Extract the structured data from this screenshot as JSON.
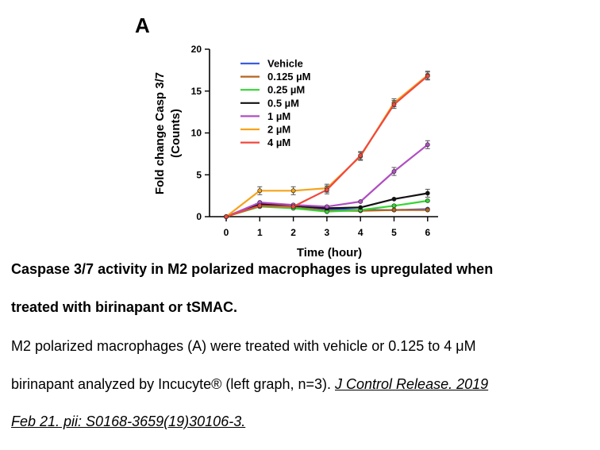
{
  "figure": {
    "panel_label": "A"
  },
  "chart_data": {
    "type": "line",
    "ylabel_line1": "Fold change Casp 3/7",
    "ylabel_line2": "(Counts)",
    "xlabel": "Time (hour)",
    "x": [
      0,
      1,
      2,
      3,
      4,
      5,
      6
    ],
    "xlim": [
      0,
      6
    ],
    "ylim": [
      0,
      20
    ],
    "x_ticks": [
      "0",
      "1",
      "2",
      "3",
      "4",
      "5",
      "6"
    ],
    "y_ticks": [
      "0",
      "5",
      "10",
      "15",
      "20"
    ],
    "legend_position": "top-left",
    "series": [
      {
        "name": "Vehicle",
        "color": "#3a5de0",
        "values": [
          0,
          1.6,
          1.3,
          0.9,
          0.8,
          0.8,
          0.9
        ]
      },
      {
        "name": "0.125 µM",
        "color": "#b5651d",
        "values": [
          0,
          1.4,
          1.1,
          0.7,
          0.7,
          0.8,
          0.8
        ]
      },
      {
        "name": "0.25 µM",
        "color": "#33d633",
        "values": [
          0,
          1.2,
          1.0,
          0.6,
          0.8,
          1.3,
          1.9
        ]
      },
      {
        "name": "0.5 µM",
        "color": "#111111",
        "values": [
          0,
          1.5,
          1.3,
          1.0,
          1.1,
          2.1,
          2.8
        ]
      },
      {
        "name": "1 µM",
        "color": "#b04fc2",
        "values": [
          0,
          1.7,
          1.4,
          1.2,
          1.8,
          5.4,
          8.6
        ]
      },
      {
        "name": "2 µM",
        "color": "#f5a31a",
        "values": [
          0,
          3.1,
          3.1,
          3.4,
          7.2,
          13.6,
          16.9
        ]
      },
      {
        "name": "4 µM",
        "color": "#f0483e",
        "values": [
          0,
          1.3,
          1.2,
          3.2,
          7.3,
          13.4,
          16.8
        ]
      }
    ]
  },
  "caption": {
    "title_line1": "Caspase 3/7 activity in M2 polarized macrophages is upregulated when",
    "title_line2": "treated with birinapant or tSMAC.",
    "body_line1": "M2 polarized macrophages (A) were treated with vehicle or 0.125 to 4 μM",
    "body_line2_text": "birinapant analyzed by Incucyte® (left graph, n=3).",
    "body_line2_link": "J Control Release. 2019",
    "body_line3_link": "Feb 21. pii: S0168-3659(19)30106-3."
  }
}
